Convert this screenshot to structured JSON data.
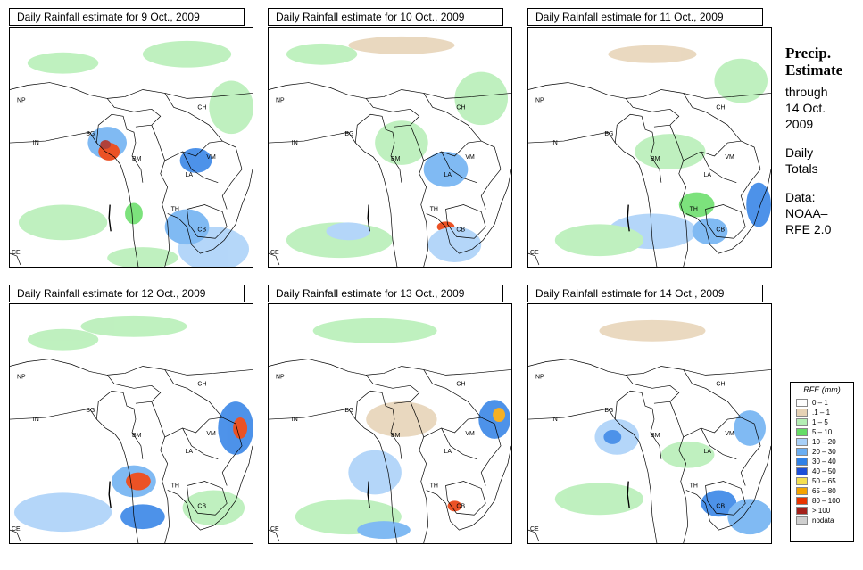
{
  "panels": [
    {
      "title": "Daily Rainfall estimate for  9 Oct., 2009"
    },
    {
      "title": "Daily Rainfall estimate for  10 Oct., 2009"
    },
    {
      "title": "Daily Rainfall estimate for  11 Oct., 2009"
    },
    {
      "title": "Daily Rainfall estimate for  12 Oct., 2009"
    },
    {
      "title": "Daily Rainfall estimate for  13 Oct., 2009"
    },
    {
      "title": "Daily Rainfall estimate for  14 Oct., 2009"
    }
  ],
  "country_labels": {
    "np": "NP",
    "ch": "CH",
    "in": "IN",
    "bg": "BG",
    "bm": "BM",
    "vm": "VM",
    "la": "LA",
    "th": "TH",
    "cb": "CB",
    "ce": "CE"
  },
  "sidebar": {
    "title_line1": "Precip.",
    "title_line2": "Estimate",
    "through": "through",
    "date_line1": "14 Oct.",
    "date_line2": "2009",
    "daily_line1": "Daily",
    "daily_line2": "Totals",
    "data_line1": "Data:",
    "data_line2": "NOAA–",
    "data_line3": "RFE 2.0"
  },
  "legend": {
    "title": "RFE (mm)",
    "items": [
      {
        "label": "0 – 1",
        "color": "#fdfdfd"
      },
      {
        "label": ".1 – 1",
        "color": "#e6d2b5"
      },
      {
        "label": "1 – 5",
        "color": "#b4eeb4"
      },
      {
        "label": "5 – 10",
        "color": "#66dd66"
      },
      {
        "label": "10 – 20",
        "color": "#a8d0f8"
      },
      {
        "label": "20 – 30",
        "color": "#6aaef2"
      },
      {
        "label": "30 – 40",
        "color": "#2f80e6"
      },
      {
        "label": "40 – 50",
        "color": "#1c4fd6"
      },
      {
        "label": "50 – 65",
        "color": "#f5df4f"
      },
      {
        "label": "65 – 80",
        "color": "#f5a300"
      },
      {
        "label": "80 – 100",
        "color": "#e83400"
      },
      {
        "label": "> 100",
        "color": "#a3201a"
      },
      {
        "label": "nodata",
        "color": "#cfcfcf"
      }
    ]
  }
}
